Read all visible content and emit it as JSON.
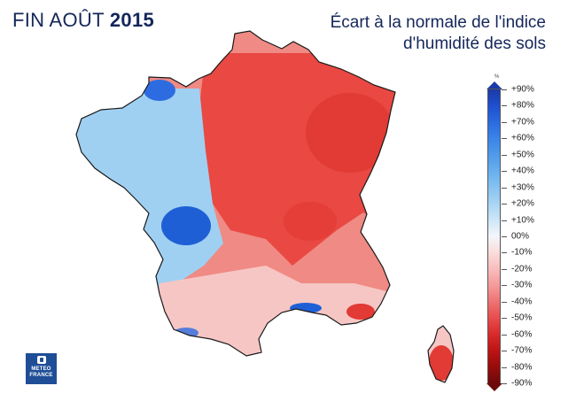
{
  "title": {
    "prefix": "FIN AOÛT",
    "year": "2015",
    "subtitle_line1": "Écart à la normale de l'indice",
    "subtitle_line2": "d'humidité des sols"
  },
  "legend": {
    "unit": "%",
    "labels": [
      "+90%",
      "+80%",
      "+70%",
      "+60%",
      "+50%",
      "+40%",
      "+30%",
      "+20%",
      "+10%",
      "00%",
      "-10%",
      "-20%",
      "-30%",
      "-40%",
      "-50%",
      "-60%",
      "-70%",
      "-80%",
      "-90%"
    ],
    "colors": [
      "#1a3aa8",
      "#1f4fd0",
      "#2a6ae0",
      "#3a84ea",
      "#4f9ae9",
      "#67afee",
      "#86c2f1",
      "#a8d4f4",
      "#cde6f8",
      "#f3f6fa",
      "#fbdcdc",
      "#f9bcbc",
      "#f59a9a",
      "#ef7373",
      "#e84c4c",
      "#d92a2a",
      "#bd1414",
      "#980b0b",
      "#6e0a0a"
    ]
  },
  "logo": {
    "line1": "METEO",
    "line2": "FRANCE"
  },
  "map_colors": {
    "east_dry": "#e8453f",
    "east_core": "#e23a34",
    "centre": "#ef8a84",
    "west_wet": "#9fd0f2",
    "atlantic_core": "#1f5fd6",
    "brittany_tip": "#2d6ce0",
    "south": "#f6c6c4",
    "land_border": "#1a1a1a"
  }
}
